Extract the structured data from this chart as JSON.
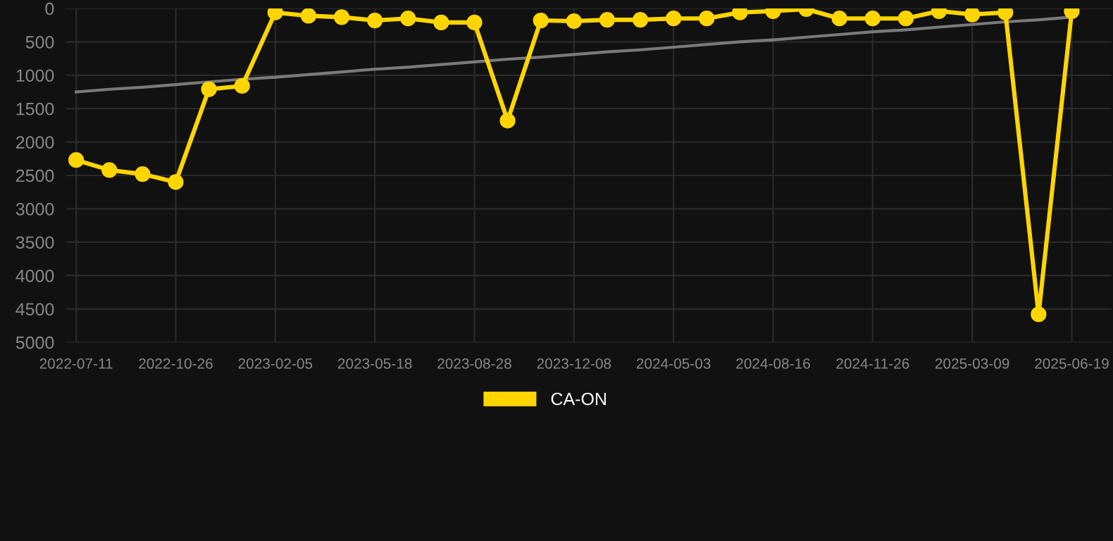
{
  "chart_data": {
    "type": "line",
    "categories": [
      "2022-07-11",
      null,
      null,
      "2022-10-26",
      null,
      null,
      "2023-02-05",
      null,
      null,
      "2023-05-18",
      null,
      null,
      "2023-08-28",
      null,
      null,
      "2023-12-08",
      null,
      null,
      "2024-05-03",
      null,
      null,
      "2024-08-16",
      null,
      null,
      "2024-11-26",
      null,
      null,
      "2025-03-09",
      null,
      null,
      "2025-06-19"
    ],
    "series": [
      {
        "name": "CA-ON",
        "color": "#ffd500",
        "marker": "circle",
        "values": [
          2270,
          2420,
          2480,
          2600,
          1210,
          1160,
          60,
          110,
          130,
          180,
          150,
          210,
          210,
          1680,
          180,
          190,
          170,
          170,
          150,
          150,
          60,
          40,
          10,
          150,
          150,
          150,
          40,
          90,
          60,
          4580,
          40
        ]
      },
      {
        "type": "line",
        "color": "#7a7a7a",
        "marker": "none",
        "values": [
          1250,
          1210,
          1180,
          1140,
          1100,
          1060,
          1030,
          990,
          950,
          910,
          880,
          840,
          800,
          760,
          730,
          690,
          650,
          620,
          580,
          540,
          500,
          470,
          430,
          390,
          350,
          320,
          280,
          240,
          200,
          170,
          130
        ]
      }
    ],
    "ylim": [
      5000,
      0
    ],
    "yticks": [
      0,
      500,
      1000,
      1500,
      2000,
      2500,
      3000,
      3500,
      4000,
      4500,
      5000
    ],
    "grid": true,
    "legend": "bottom"
  }
}
